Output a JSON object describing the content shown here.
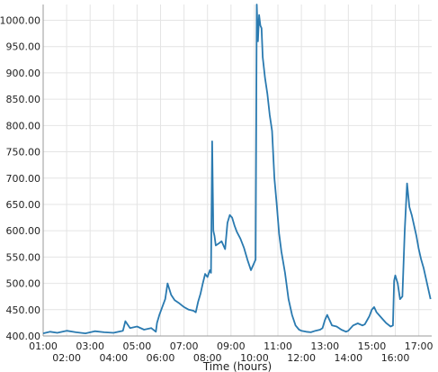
{
  "chart_data": {
    "type": "line",
    "title": "",
    "xlabel": "Time (hours)",
    "ylabel": "",
    "grid": true,
    "xlim": [
      1.0,
      17.55
    ],
    "ylim": [
      400,
      1030
    ],
    "y_ticks": [
      400,
      450,
      500,
      550,
      600,
      650,
      700,
      750,
      800,
      850,
      900,
      950,
      1000
    ],
    "y_tick_labels": [
      "400.00",
      "450.00",
      "500.00",
      "550.00",
      "600.00",
      "650.00",
      "700.00",
      "750.00",
      "800.00",
      "850.00",
      "900.00",
      "950.00",
      "1000.00"
    ],
    "x_ticks": [
      1,
      2,
      3,
      4,
      5,
      6,
      7,
      8,
      9,
      10,
      11,
      12,
      13,
      14,
      15,
      16,
      17
    ],
    "x_tick_labels": [
      "01:00",
      "02:00",
      "03:00",
      "04:00",
      "05:00",
      "06:00",
      "07:00",
      "08:00",
      "09:00",
      "10:00",
      "11:00",
      "12:00",
      "13:00",
      "14:00",
      "15:00",
      "16:00",
      "17:00"
    ],
    "line_color": "#2a7ab0",
    "series": [
      {
        "x": [
          1.0,
          1.3,
          1.6,
          2.0,
          2.4,
          2.8,
          3.2,
          3.6,
          4.0,
          4.4,
          4.5,
          4.7,
          5.0,
          5.3,
          5.6,
          5.8,
          5.85,
          5.95,
          6.05,
          6.2,
          6.3,
          6.45,
          6.6,
          6.8,
          7.0,
          7.2,
          7.4,
          7.5,
          7.6,
          7.7,
          7.8,
          7.9,
          8.0,
          8.1,
          8.15,
          8.2,
          8.25,
          8.3,
          8.35,
          8.45,
          8.6,
          8.75,
          8.85,
          8.95,
          9.05,
          9.15,
          9.25,
          9.4,
          9.55,
          9.7,
          9.85,
          9.95,
          10.05,
          10.1,
          10.15,
          10.2,
          10.25,
          10.3,
          10.35,
          10.45,
          10.55,
          10.65,
          10.75,
          10.85,
          10.95,
          11.05,
          11.15,
          11.3,
          11.45,
          11.6,
          11.75,
          11.9,
          12.0,
          12.2,
          12.4,
          12.6,
          12.8,
          12.9,
          13.0,
          13.1,
          13.3,
          13.5,
          13.7,
          13.9,
          14.0,
          14.2,
          14.4,
          14.6,
          14.7,
          14.8,
          14.9,
          15.0,
          15.1,
          15.2,
          15.3,
          15.5,
          15.6,
          15.8,
          15.9,
          15.95,
          16.0,
          16.1,
          16.2,
          16.3,
          16.4,
          16.5,
          16.6,
          16.7,
          16.8,
          16.9,
          17.0,
          17.1,
          17.2,
          17.3,
          17.4,
          17.5
        ],
        "values": [
          405,
          408,
          406,
          410,
          407,
          405,
          409,
          407,
          406,
          410,
          428,
          415,
          418,
          412,
          415,
          408,
          425,
          440,
          452,
          470,
          500,
          478,
          468,
          462,
          455,
          450,
          448,
          445,
          465,
          480,
          500,
          518,
          512,
          525,
          520,
          770,
          600,
          590,
          572,
          575,
          580,
          565,
          615,
          630,
          625,
          610,
          598,
          585,
          568,
          545,
          525,
          535,
          545,
          1030,
          960,
          1010,
          990,
          985,
          930,
          890,
          860,
          820,
          790,
          700,
          650,
          595,
          560,
          520,
          470,
          440,
          420,
          412,
          410,
          408,
          407,
          410,
          412,
          415,
          430,
          440,
          420,
          418,
          412,
          408,
          410,
          420,
          424,
          420,
          422,
          430,
          438,
          450,
          455,
          445,
          440,
          430,
          425,
          418,
          420,
          505,
          515,
          500,
          470,
          475,
          600,
          690,
          645,
          630,
          610,
          590,
          565,
          545,
          530,
          510,
          490,
          470
        ]
      }
    ]
  }
}
